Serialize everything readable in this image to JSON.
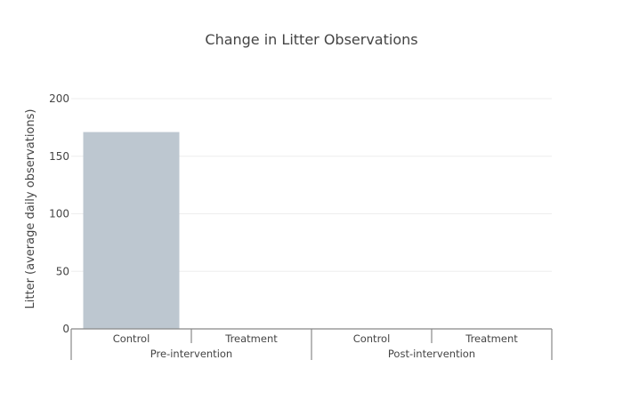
{
  "chart_data": {
    "type": "bar",
    "title": "Change in Litter Observations",
    "ylabel": "Litter (average daily observations)",
    "xlabel": "",
    "ylim": [
      0,
      200
    ],
    "yticks": [
      0,
      50,
      100,
      150,
      200
    ],
    "groups": [
      {
        "name": "Pre-intervention",
        "categories": [
          "Control",
          "Treatment"
        ]
      },
      {
        "name": "Post-intervention",
        "categories": [
          "Control",
          "Treatment"
        ]
      }
    ],
    "values": [
      171,
      0,
      0,
      0
    ],
    "bar_color": "#bdc7d0",
    "grid": true,
    "legend": "none"
  }
}
